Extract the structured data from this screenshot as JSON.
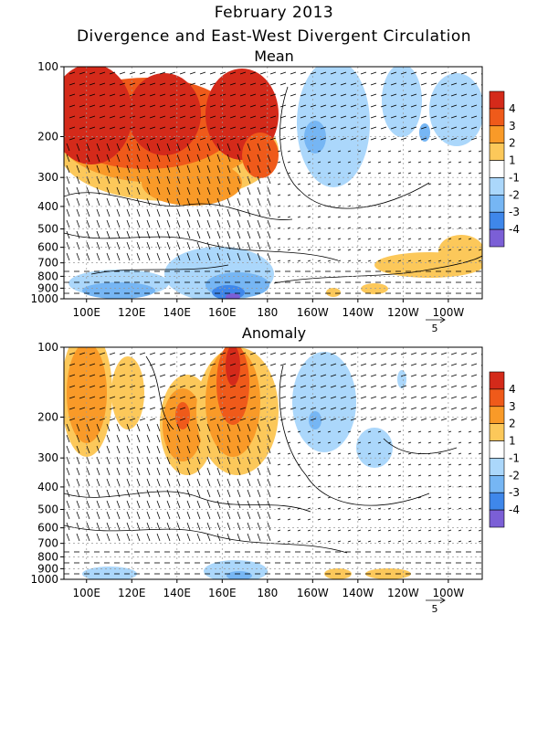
{
  "title_line1": "February 2013",
  "title_line2": "Divergence and East-West Divergent Circulation",
  "chart_data": [
    {
      "type": "heatmap",
      "panel_title": "Mean",
      "x_ticks": [
        "100E",
        "120E",
        "140E",
        "160E",
        "180",
        "160W",
        "140W",
        "120W",
        "100W"
      ],
      "y_ticks": [
        "100",
        "200",
        "300",
        "400",
        "500",
        "600",
        "700",
        "800",
        "900",
        "1000"
      ],
      "x_range_lon_east": [
        90,
        275
      ],
      "y_range_hpa": [
        100,
        1000
      ],
      "y_scale": "log",
      "colorbar_labels": [
        "4",
        "3",
        "2",
        "1",
        "-1",
        "-2",
        "-3",
        "-4"
      ],
      "colorbar_colors": [
        "#d42a1a",
        "#ef5a1a",
        "#f99a28",
        "#fcc85a",
        "#ffffff",
        "#abd7fb",
        "#76b6f4",
        "#3f87ea",
        "#7b5fd6"
      ],
      "vector_scale_label": "5",
      "grid": true
    },
    {
      "type": "heatmap",
      "panel_title": "Anomaly",
      "x_ticks": [
        "100E",
        "120E",
        "140E",
        "160E",
        "180",
        "160W",
        "140W",
        "120W",
        "100W"
      ],
      "y_ticks": [
        "100",
        "200",
        "300",
        "400",
        "500",
        "600",
        "700",
        "800",
        "900",
        "1000"
      ],
      "x_range_lon_east": [
        90,
        275
      ],
      "y_range_hpa": [
        100,
        1000
      ],
      "y_scale": "log",
      "colorbar_labels": [
        "4",
        "3",
        "2",
        "1",
        "-1",
        "-2",
        "-3",
        "-4"
      ],
      "colorbar_colors": [
        "#d42a1a",
        "#ef5a1a",
        "#f99a28",
        "#fcc85a",
        "#ffffff",
        "#abd7fb",
        "#76b6f4",
        "#3f87ea",
        "#7b5fd6"
      ],
      "vector_scale_label": "5",
      "grid": true
    }
  ]
}
